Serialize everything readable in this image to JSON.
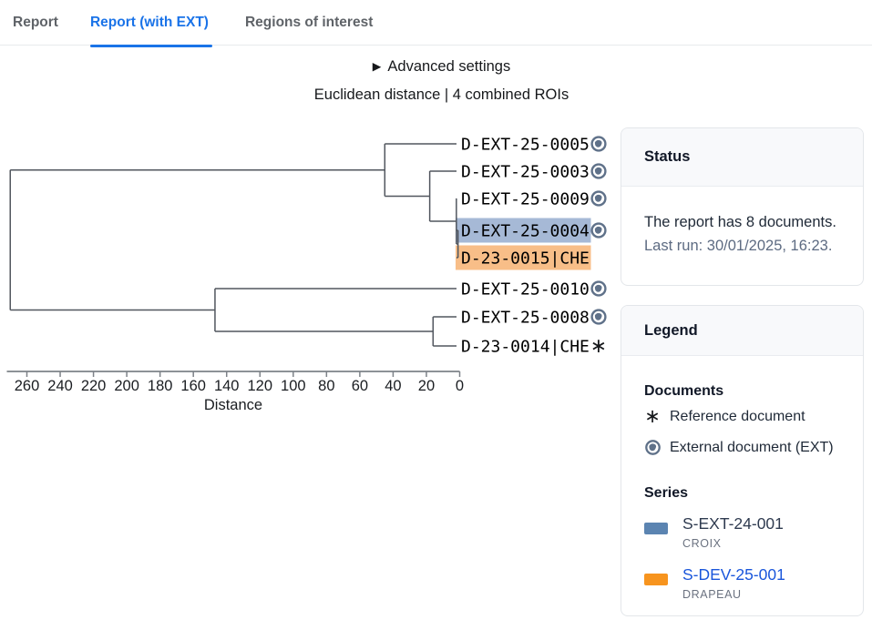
{
  "tabs": [
    {
      "label": "Report",
      "active": false
    },
    {
      "label": "Report (with EXT)",
      "active": true
    },
    {
      "label": "Regions of interest",
      "active": false
    }
  ],
  "toolbar": {
    "advanced_glyph": "▶",
    "advanced_label": "Advanced settings"
  },
  "subtitle": "Euclidean distance | 4 combined ROIs",
  "colors": {
    "accent": "#1a73e8",
    "link_blue": "#1a56db",
    "series_dark": "#2f3b50",
    "swatch_blue": "#5b84b1",
    "swatch_orange": "#f7941e",
    "highlight_blue": "#a6b9d6",
    "highlight_orange": "#f8be88",
    "globe": "#5f7189",
    "dendro_line": "#51565e"
  },
  "chart_data": {
    "type": "dendrogram",
    "orientation": "horizontal-right-leaves",
    "xlabel": "Distance",
    "axis": {
      "min": 0,
      "max": 260,
      "tick_step": 20,
      "reversed": true
    },
    "axis_ticks": [
      260,
      240,
      220,
      200,
      180,
      160,
      140,
      120,
      100,
      80,
      60,
      40,
      20,
      0
    ],
    "leaves": [
      {
        "label": "D-EXT-25-0005",
        "marker": "globe-icon"
      },
      {
        "label": "D-EXT-25-0003",
        "marker": "globe-icon"
      },
      {
        "label": "D-EXT-25-0009",
        "marker": "globe-icon"
      },
      {
        "label": "D-EXT-25-0004",
        "marker": "globe-icon",
        "highlight": "#a6b9d6",
        "series": "S-EXT-24-001"
      },
      {
        "label": "D-23-0015|CHE",
        "marker": "none",
        "highlight": "#f8be88",
        "series": "S-DEV-25-001"
      },
      {
        "label": "D-EXT-25-0010",
        "marker": "globe-icon"
      },
      {
        "label": "D-EXT-25-0008",
        "marker": "globe-icon"
      },
      {
        "label": "D-23-0014|CHE",
        "marker": "asterisk-icon"
      }
    ],
    "merges": [
      {
        "left": "L3",
        "right": "L4",
        "distance": 1
      },
      {
        "left": "L2",
        "right": "M0",
        "distance": 2
      },
      {
        "left": "L1",
        "right": "M1",
        "distance": 18
      },
      {
        "left": "L0",
        "right": "M2",
        "distance": 45
      },
      {
        "left": "L6",
        "right": "L7",
        "distance": 16
      },
      {
        "left": "L5",
        "right": "M4",
        "distance": 147
      },
      {
        "left": "M3",
        "right": "M5",
        "distance": 270
      }
    ]
  },
  "status": {
    "title": "Status",
    "line1": "The report has 8 documents.",
    "line2": "Last run: 30/01/2025, 16:23."
  },
  "legend": {
    "title": "Legend",
    "documents_heading": "Documents",
    "items": [
      {
        "icon": "asterisk-icon",
        "glyph": "∗",
        "label": "Reference document"
      },
      {
        "icon": "globe-icon",
        "label": "External document (EXT)"
      }
    ],
    "series_heading": "Series",
    "series": [
      {
        "id": "S-EXT-24-001",
        "sublabel": "CROIX",
        "color": "#5b84b1",
        "is_link": false
      },
      {
        "id": "S-DEV-25-001",
        "sublabel": "DRAPEAU",
        "color": "#f7941e",
        "is_link": true
      }
    ]
  }
}
